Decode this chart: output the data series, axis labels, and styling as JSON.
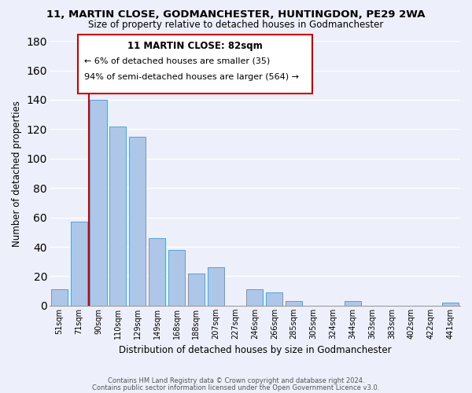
{
  "title1": "11, MARTIN CLOSE, GODMANCHESTER, HUNTINGDON, PE29 2WA",
  "title2": "Size of property relative to detached houses in Godmanchester",
  "xlabel": "Distribution of detached houses by size in Godmanchester",
  "ylabel": "Number of detached properties",
  "bar_color": "#aec6e8",
  "bar_edge_color": "#5a9fd4",
  "categories": [
    "51sqm",
    "71sqm",
    "90sqm",
    "110sqm",
    "129sqm",
    "149sqm",
    "168sqm",
    "188sqm",
    "207sqm",
    "227sqm",
    "246sqm",
    "266sqm",
    "285sqm",
    "305sqm",
    "324sqm",
    "344sqm",
    "363sqm",
    "383sqm",
    "402sqm",
    "422sqm",
    "441sqm"
  ],
  "values": [
    11,
    57,
    140,
    122,
    115,
    46,
    38,
    22,
    26,
    0,
    11,
    9,
    3,
    0,
    0,
    3,
    0,
    0,
    0,
    0,
    2
  ],
  "ylim": [
    0,
    180
  ],
  "yticks": [
    0,
    20,
    40,
    60,
    80,
    100,
    120,
    140,
    160,
    180
  ],
  "property_line_label": "11 MARTIN CLOSE: 82sqm",
  "annotation_line1": "← 6% of detached houses are smaller (35)",
  "annotation_line2": "94% of semi-detached houses are larger (564) →",
  "footer1": "Contains HM Land Registry data © Crown copyright and database right 2024.",
  "footer2": "Contains public sector information licensed under the Open Government Licence v3.0.",
  "background_color": "#edf0fa",
  "grid_color": "#ffffff",
  "red_line_color": "#cc0000",
  "box_edge_color": "#cc0000"
}
